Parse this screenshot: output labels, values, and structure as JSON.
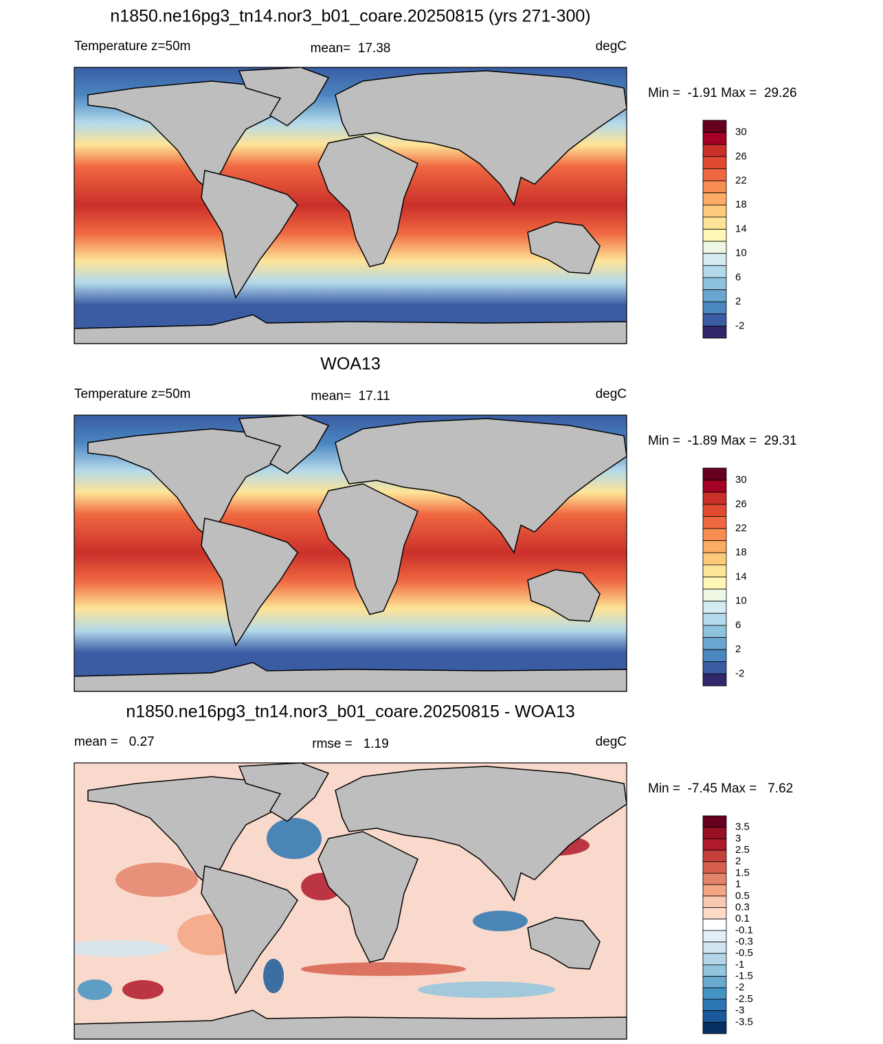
{
  "panels": [
    {
      "title": "n1850.ne16pg3_tn14.nor3_b01_coare.20250815 (yrs 271-300)",
      "left_label": "Temperature z=50m",
      "center_label": "mean=  17.38",
      "right_label": "degC",
      "range_label": "Min =  -1.91 Max =  29.26",
      "colorbar": {
        "labels": [
          "30",
          "26",
          "22",
          "18",
          "14",
          "10",
          "6",
          "2",
          "-2"
        ],
        "colors": [
          "#67001f",
          "#a50026",
          "#c9302a",
          "#e04a31",
          "#f06841",
          "#f88d52",
          "#fcac65",
          "#fdca7c",
          "#fee497",
          "#fff7b6",
          "#eef7e3",
          "#d4ebf2",
          "#b3d9ea",
          "#8ec3de",
          "#6aa6cf",
          "#4a86c0",
          "#3a5ca3",
          "#312869"
        ]
      }
    },
    {
      "title": "WOA13",
      "left_label": "Temperature z=50m",
      "center_label": "mean=  17.11",
      "right_label": "degC",
      "range_label": "Min =  -1.89 Max =  29.31",
      "colorbar": {
        "labels": [
          "30",
          "26",
          "22",
          "18",
          "14",
          "10",
          "6",
          "2",
          "-2"
        ],
        "colors": [
          "#67001f",
          "#a50026",
          "#c9302a",
          "#e04a31",
          "#f06841",
          "#f88d52",
          "#fcac65",
          "#fdca7c",
          "#fee497",
          "#fff7b6",
          "#eef7e3",
          "#d4ebf2",
          "#b3d9ea",
          "#8ec3de",
          "#6aa6cf",
          "#4a86c0",
          "#3a5ca3",
          "#312869"
        ]
      }
    },
    {
      "title": "n1850.ne16pg3_tn14.nor3_b01_coare.20250815 - WOA13",
      "left_label": "mean =   0.27",
      "center_label": "rmse =   1.19",
      "right_label": "degC",
      "range_label": "Min =  -7.45 Max =   7.62",
      "colorbar": {
        "labels": [
          "3.5",
          "3",
          "2.5",
          "2",
          "1.5",
          "1",
          "0.5",
          "0.3",
          "0.1",
          "-0.1",
          "-0.3",
          "-0.5",
          "-1",
          "-1.5",
          "-2",
          "-2.5",
          "-3",
          "-3.5"
        ],
        "colors": [
          "#67001f",
          "#960f22",
          "#b2182b",
          "#c6403c",
          "#d6604d",
          "#e4846c",
          "#f4a582",
          "#f9c8b0",
          "#fddbc7",
          "#ffffff",
          "#e3eff6",
          "#d1e5f0",
          "#b4d5e8",
          "#92c5de",
          "#6aa9d0",
          "#4393c3",
          "#2b75b3",
          "#1b5a9a",
          "#053061"
        ]
      }
    }
  ]
}
